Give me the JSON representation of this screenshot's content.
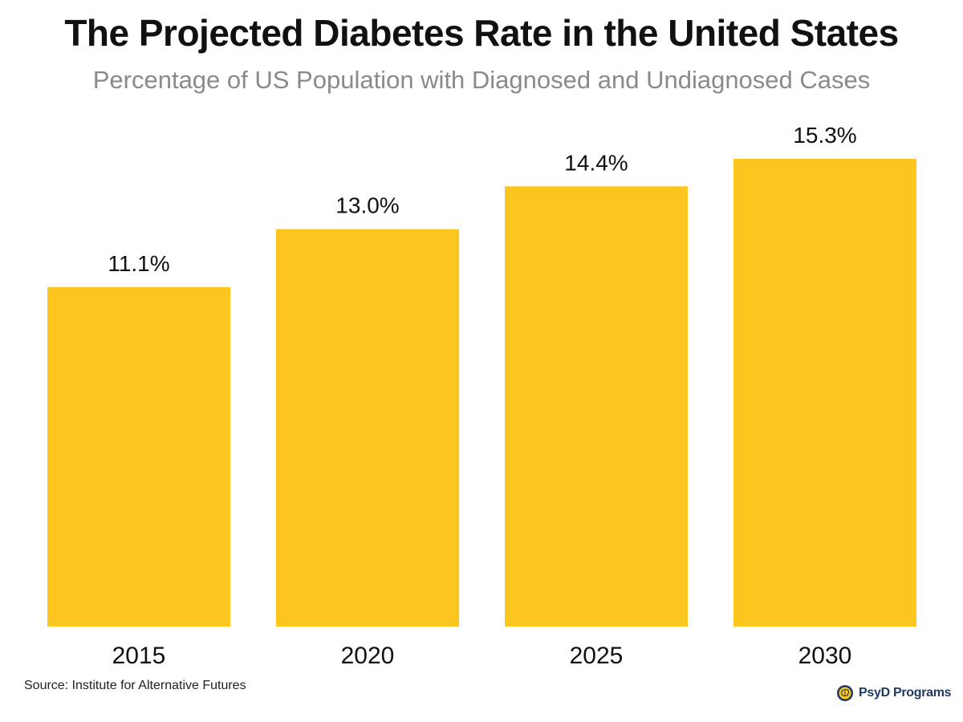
{
  "title": "The Projected Diabetes Rate in the United States",
  "subtitle": "Percentage of US Population with Diagnosed and Undiagnosed Cases",
  "source": "Source: Institute for Alternative Futures",
  "brand": {
    "name": "PsyD Programs",
    "icon": "brain-logo-icon"
  },
  "colors": {
    "bar": "#FDC61E",
    "value_label": "#111111",
    "tick_label": "#111111"
  },
  "chart_data": {
    "type": "bar",
    "categories": [
      "2015",
      "2020",
      "2025",
      "2030"
    ],
    "values": [
      11.1,
      13.0,
      14.4,
      15.3
    ],
    "value_labels": [
      "11.1%",
      "13.0%",
      "14.4%",
      "15.3%"
    ],
    "title": "The Projected Diabetes Rate in the United States",
    "subtitle": "Percentage of US Population with Diagnosed and Undiagnosed Cases",
    "xlabel": "",
    "ylabel": "",
    "ylim": [
      0,
      15.3
    ],
    "grid": false,
    "legend": "none"
  }
}
